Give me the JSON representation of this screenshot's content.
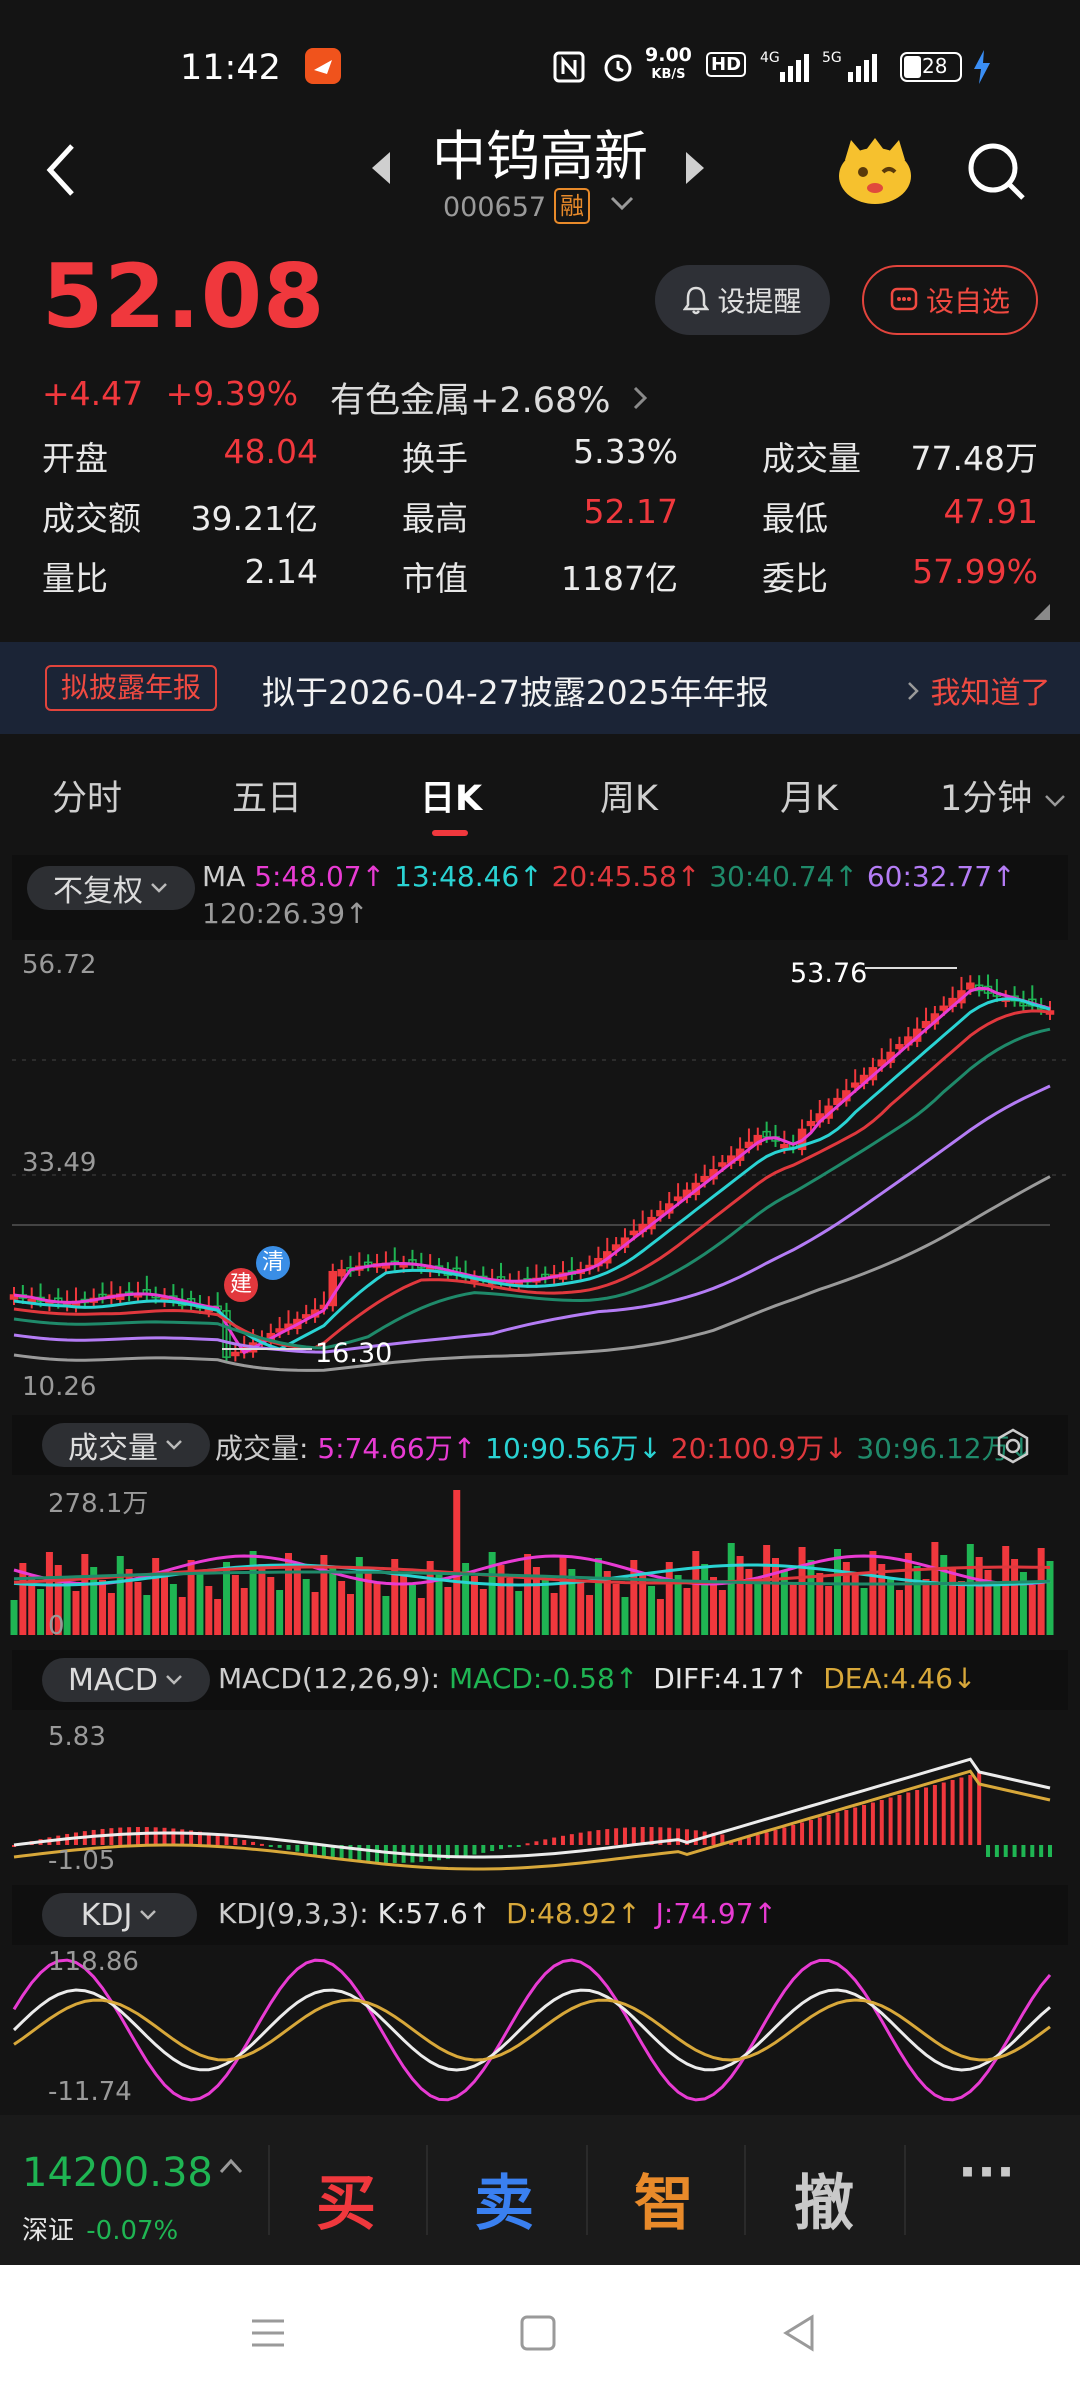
{
  "status": {
    "time": "11:42",
    "net_speed_top": "9.00",
    "net_speed_bottom": "KB/S",
    "hd": "HD",
    "net1": "4G",
    "net2": "5G",
    "battery": "28"
  },
  "header": {
    "title": "中钨高新",
    "code": "000657",
    "margin_badge": "融"
  },
  "quote": {
    "price": "52.08",
    "change": "+4.47",
    "change_pct": "+9.39%",
    "sector_name": "有色金属",
    "sector_change": "+2.68%",
    "remind_label": "设提醒",
    "watch_label": "设自选"
  },
  "stats": {
    "open_label": "开盘",
    "open": "48.04",
    "turnover_label": "换手",
    "turnover": "5.33%",
    "volume_label": "成交量",
    "volume": "77.48万",
    "amount_label": "成交额",
    "amount": "39.21亿",
    "high_label": "最高",
    "high": "52.17",
    "low_label": "最低",
    "low": "47.91",
    "vol_ratio_label": "量比",
    "vol_ratio": "2.14",
    "mkt_cap_label": "市值",
    "mkt_cap": "1187亿",
    "bid_ratio_label": "委比",
    "bid_ratio": "57.99%"
  },
  "banner": {
    "tag": "拟披露年报",
    "text": "拟于2026-04-27披露2025年年报",
    "action": "我知道了"
  },
  "tabs": [
    "分时",
    "五日",
    "日K",
    "周K",
    "月K",
    "1分钟"
  ],
  "kline": {
    "adjust": "不复权",
    "ma_label": "MA",
    "ma5": "5:48.07",
    "ma13": "13:48.46",
    "ma20": "20:45.58",
    "ma30": "30:40.74",
    "ma60": "60:32.77",
    "ma120": "120:26.39",
    "y_top": "56.72",
    "y_mid": "33.49",
    "y_bot": "10.26",
    "max_label": "53.76",
    "min_label": "16.30",
    "mark_build": "建",
    "mark_clear": "清"
  },
  "volume": {
    "selector": "成交量",
    "prefix": "成交量:",
    "v5": "5:74.66万",
    "v10": "10:90.56万",
    "v20": "20:100.9万",
    "v30": "30:96.12万",
    "y_top": "278.1万",
    "y_zero": "0"
  },
  "macd": {
    "selector": "MACD",
    "params": "MACD(12,26,9):",
    "macd": "MACD:-0.58",
    "diff": "DIFF:4.17",
    "dea": "DEA:4.46",
    "y_top": "5.83",
    "y_bot": "-1.05"
  },
  "kdj": {
    "selector": "KDJ",
    "params": "KDJ(9,3,3):",
    "k": "K:57.6",
    "d": "D:48.92",
    "j": "J:74.97",
    "y_top": "118.86",
    "y_bot": "-11.74"
  },
  "index": {
    "value": "14200.38",
    "name": "深证",
    "change": "-0.07%"
  },
  "actions": {
    "buy": "买",
    "sell": "卖",
    "smart": "智",
    "cancel": "撤",
    "more": "···"
  },
  "colors": {
    "up": "#f0383d",
    "down": "#1fb553",
    "ma5": "#e83bd3",
    "ma13": "#2ad3d3",
    "ma20": "#e0383d",
    "ma30": "#1f8a6a",
    "ma60": "#b47cf5",
    "ma120": "#9a9a9a"
  }
}
